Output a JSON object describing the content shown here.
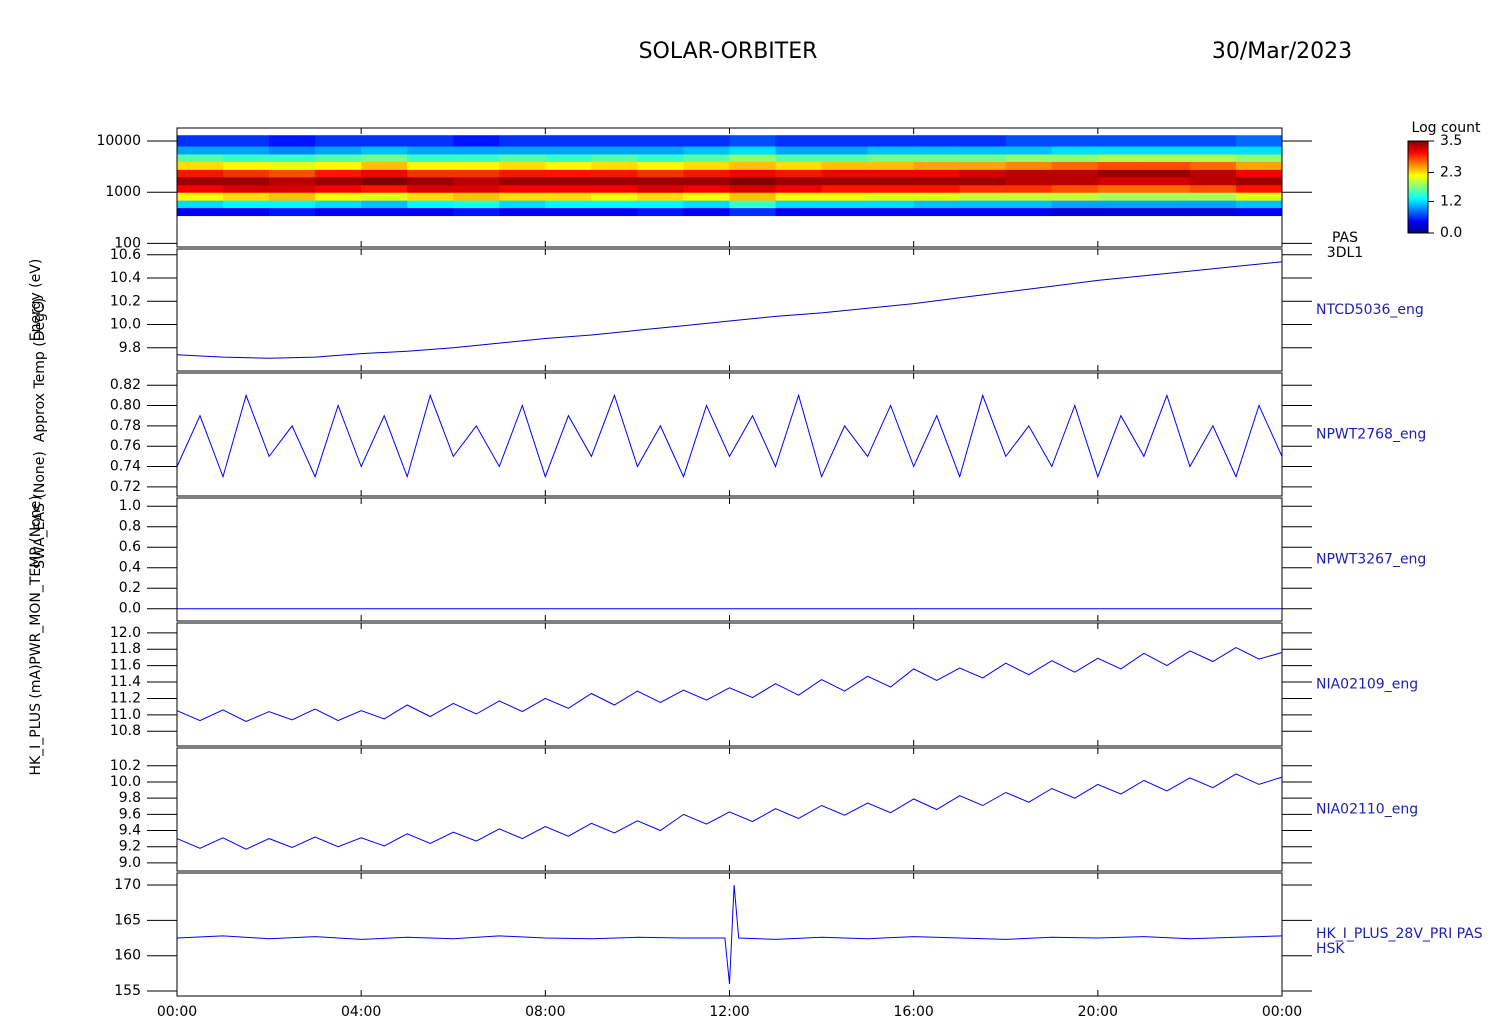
{
  "title": "SOLAR-ORBITER",
  "date": "30/Mar/2023",
  "chart_data": [
    {
      "type": "heatmap",
      "ylabel": "Energy (eV)",
      "label": [
        "PAS",
        "3DL1"
      ],
      "ylog": true,
      "ylim": [
        85,
        18000
      ],
      "yticks": [
        100,
        1000,
        10000
      ],
      "xlim": [
        0,
        24
      ],
      "xticks": [
        0,
        4,
        8,
        12,
        16,
        20,
        24
      ],
      "x": [
        0,
        1,
        2,
        3,
        4,
        5,
        6,
        7,
        8,
        9,
        10,
        11,
        12,
        13,
        14,
        15,
        16,
        17,
        18,
        19,
        20,
        21,
        22,
        23,
        24
      ],
      "ybins": [
        350,
        500,
        700,
        1000,
        1400,
        2000,
        2800,
        4000,
        5600,
        8000,
        13000
      ],
      "z": [
        [
          0.4,
          1.2,
          2.2,
          3.1,
          3.4,
          3.0,
          2.3,
          1.6,
          1.0,
          0.6
        ],
        [
          0.4,
          1.3,
          2.3,
          3.2,
          3.4,
          2.9,
          2.2,
          1.5,
          1.0,
          0.6
        ],
        [
          0.5,
          1.3,
          2.4,
          3.2,
          3.3,
          2.8,
          2.1,
          1.5,
          0.9,
          0.5
        ],
        [
          0.4,
          1.2,
          2.2,
          3.1,
          3.4,
          3.0,
          2.2,
          1.6,
          1.0,
          0.6
        ],
        [
          0.4,
          1.1,
          2.1,
          3.0,
          3.5,
          3.1,
          2.4,
          1.7,
          1.1,
          0.6
        ],
        [
          0.4,
          1.3,
          2.3,
          3.2,
          3.4,
          2.9,
          2.2,
          1.5,
          1.0,
          0.6
        ],
        [
          0.5,
          1.4,
          2.4,
          3.2,
          3.3,
          2.9,
          2.2,
          1.5,
          1.0,
          0.5
        ],
        [
          0.4,
          1.2,
          2.3,
          3.1,
          3.4,
          3.0,
          2.3,
          1.6,
          1.0,
          0.6
        ],
        [
          0.4,
          1.3,
          2.3,
          3.1,
          3.4,
          3.0,
          2.2,
          1.5,
          1.0,
          0.6
        ],
        [
          0.4,
          1.3,
          2.2,
          3.1,
          3.4,
          3.0,
          2.3,
          1.6,
          1.0,
          0.6
        ],
        [
          0.5,
          1.3,
          2.3,
          3.2,
          3.4,
          2.9,
          2.2,
          1.5,
          1.0,
          0.6
        ],
        [
          0.4,
          1.2,
          2.2,
          3.1,
          3.4,
          3.0,
          2.3,
          1.6,
          1.1,
          0.6
        ],
        [
          0.6,
          1.5,
          2.4,
          3.2,
          3.5,
          3.1,
          2.4,
          1.8,
          1.2,
          0.7
        ],
        [
          0.4,
          1.2,
          2.2,
          3.1,
          3.4,
          3.0,
          2.3,
          1.6,
          1.0,
          0.6
        ],
        [
          0.4,
          1.2,
          2.2,
          3.0,
          3.4,
          3.1,
          2.4,
          1.6,
          1.0,
          0.6
        ],
        [
          0.4,
          1.2,
          2.1,
          3.0,
          3.4,
          3.1,
          2.4,
          1.7,
          1.1,
          0.6
        ],
        [
          0.4,
          1.1,
          2.1,
          3.0,
          3.4,
          3.1,
          2.5,
          1.7,
          1.1,
          0.6
        ],
        [
          0.4,
          1.1,
          2.0,
          2.9,
          3.4,
          3.2,
          2.5,
          1.7,
          1.1,
          0.6
        ],
        [
          0.4,
          1.1,
          2.0,
          2.9,
          3.3,
          3.3,
          2.6,
          1.8,
          1.1,
          0.7
        ],
        [
          0.3,
          1.0,
          2.0,
          2.8,
          3.3,
          3.3,
          2.7,
          1.8,
          1.2,
          0.7
        ],
        [
          0.3,
          1.0,
          1.9,
          2.7,
          3.2,
          3.4,
          2.8,
          1.9,
          1.2,
          0.7
        ],
        [
          0.3,
          1.0,
          1.9,
          2.7,
          3.2,
          3.4,
          2.8,
          1.9,
          1.2,
          0.7
        ],
        [
          0.3,
          1.0,
          1.9,
          2.8,
          3.3,
          3.3,
          2.7,
          1.9,
          1.2,
          0.7
        ],
        [
          0.4,
          1.1,
          2.1,
          3.0,
          3.4,
          3.1,
          2.5,
          1.8,
          1.2,
          0.8
        ]
      ],
      "colorbar": {
        "title": "Log count",
        "clim": [
          0,
          3.5
        ],
        "ticks": [
          {
            "value": 0,
            "label": "0.0"
          },
          1.2,
          2.3,
          3.5
        ]
      }
    },
    {
      "type": "line",
      "ylabel": "Approx Temp (DegC)",
      "label": "NTCD5036_eng",
      "ylim": [
        9.6,
        10.65
      ],
      "yticks": [
        9.8,
        {
          "value": 10,
          "label": "10.0"
        },
        10.2,
        10.4,
        10.6
      ],
      "xlim": [
        0,
        24
      ],
      "xticks": [
        0,
        4,
        8,
        12,
        16,
        20,
        24
      ],
      "series": [
        {
          "color": "#0000c8",
          "x": [
            0,
            1,
            2,
            3,
            4,
            5,
            6,
            7,
            8,
            9,
            10,
            11,
            12,
            13,
            14,
            15,
            16,
            17,
            18,
            19,
            20,
            21,
            22,
            23,
            24
          ],
          "values": [
            9.74,
            9.72,
            9.71,
            9.72,
            9.75,
            9.77,
            9.8,
            9.84,
            9.88,
            9.91,
            9.95,
            9.99,
            10.03,
            10.07,
            10.1,
            10.14,
            10.18,
            10.23,
            10.28,
            10.33,
            10.38,
            10.42,
            10.46,
            10.5,
            10.54
          ]
        }
      ]
    },
    {
      "type": "line",
      "label": "NPWT2768_eng",
      "ylim": [
        0.711,
        0.832
      ],
      "yticks": [
        0.72,
        0.74,
        0.76,
        0.78,
        {
          "value": 0.8,
          "label": "0.80"
        },
        0.82
      ],
      "xlim": [
        0,
        24
      ],
      "xticks": [
        0,
        4,
        8,
        12,
        16,
        20,
        24
      ],
      "series": [
        {
          "color": "#0000ff",
          "x": [
            0,
            0.5,
            1,
            1.5,
            2,
            2.5,
            3,
            3.5,
            4,
            4.5,
            5,
            5.5,
            6,
            6.5,
            7,
            7.5,
            8,
            8.5,
            9,
            9.5,
            10,
            10.5,
            11,
            11.5,
            12,
            12.5,
            13,
            13.5,
            14,
            14.5,
            15,
            15.5,
            16,
            16.5,
            17,
            17.5,
            18,
            18.5,
            19,
            19.5,
            20,
            20.5,
            21,
            21.5,
            22,
            22.5,
            23,
            23.5,
            24
          ],
          "values": [
            0.74,
            0.79,
            0.73,
            0.81,
            0.75,
            0.78,
            0.73,
            0.8,
            0.74,
            0.79,
            0.73,
            0.81,
            0.75,
            0.78,
            0.74,
            0.8,
            0.73,
            0.79,
            0.75,
            0.81,
            0.74,
            0.78,
            0.73,
            0.8,
            0.75,
            0.79,
            0.74,
            0.81,
            0.73,
            0.78,
            0.75,
            0.8,
            0.74,
            0.79,
            0.73,
            0.81,
            0.75,
            0.78,
            0.74,
            0.8,
            0.73,
            0.79,
            0.75,
            0.81,
            0.74,
            0.78,
            0.73,
            0.8,
            0.75
          ]
        }
      ]
    },
    {
      "type": "line",
      "ylabel": "SWA_EAS (None)",
      "label": "NPWT3267_eng",
      "ylim": [
        -0.12,
        1.08
      ],
      "yticks": [
        {
          "value": 0,
          "label": "0.0"
        },
        0.2,
        0.4,
        0.6,
        0.8,
        {
          "value": 1,
          "label": "1.0"
        }
      ],
      "xlim": [
        0,
        24
      ],
      "xticks": [
        0,
        4,
        8,
        12,
        16,
        20,
        24
      ],
      "series": [
        {
          "color": "#0000ff",
          "x": [
            0,
            24
          ],
          "values": [
            0,
            0
          ]
        }
      ]
    },
    {
      "type": "line",
      "ylabel": "PWR_MON_TEMP (None)",
      "label": "NIA02109_eng",
      "ylim": [
        10.62,
        12.12
      ],
      "yticks": [
        10.8,
        {
          "value": 11,
          "label": "11.0"
        },
        11.2,
        11.4,
        11.6,
        11.8,
        {
          "value": 12,
          "label": "12.0"
        }
      ],
      "xlim": [
        0,
        24
      ],
      "xticks": [
        0,
        4,
        8,
        12,
        16,
        20,
        24
      ],
      "series": [
        {
          "color": "#0000ff",
          "x": [
            0,
            0.5,
            1,
            1.5,
            2,
            2.5,
            3,
            3.5,
            4,
            4.5,
            5,
            5.5,
            6,
            6.5,
            7,
            7.5,
            8,
            8.5,
            9,
            9.5,
            10,
            10.5,
            11,
            11.5,
            12,
            12.5,
            13,
            13.5,
            14,
            14.5,
            15,
            15.5,
            16,
            16.5,
            17,
            17.5,
            18,
            18.5,
            19,
            19.5,
            20,
            20.5,
            21,
            21.5,
            22,
            22.5,
            23,
            23.5,
            24
          ],
          "values": [
            11.05,
            10.93,
            11.06,
            10.92,
            11.04,
            10.94,
            11.07,
            10.93,
            11.05,
            10.95,
            11.12,
            10.98,
            11.14,
            11.01,
            11.17,
            11.04,
            11.2,
            11.08,
            11.26,
            11.12,
            11.29,
            11.15,
            11.3,
            11.18,
            11.33,
            11.21,
            11.38,
            11.24,
            11.43,
            11.29,
            11.47,
            11.34,
            11.56,
            11.42,
            11.57,
            11.45,
            11.63,
            11.49,
            11.66,
            11.52,
            11.69,
            11.56,
            11.75,
            11.6,
            11.78,
            11.65,
            11.82,
            11.68,
            11.76
          ]
        }
      ]
    },
    {
      "type": "line",
      "label": "NIA02110_eng",
      "ylim": [
        8.9,
        10.42
      ],
      "yticks": [
        {
          "value": 9,
          "label": "9.0"
        },
        9.2,
        9.4,
        9.6,
        9.8,
        {
          "value": 10,
          "label": "10.0"
        },
        10.2
      ],
      "xlim": [
        0,
        24
      ],
      "xticks": [
        0,
        4,
        8,
        12,
        16,
        20,
        24
      ],
      "series": [
        {
          "color": "#0000ff",
          "x": [
            0,
            0.5,
            1,
            1.5,
            2,
            2.5,
            3,
            3.5,
            4,
            4.5,
            5,
            5.5,
            6,
            6.5,
            7,
            7.5,
            8,
            8.5,
            9,
            9.5,
            10,
            10.5,
            11,
            11.5,
            12,
            12.5,
            13,
            13.5,
            14,
            14.5,
            15,
            15.5,
            16,
            16.5,
            17,
            17.5,
            18,
            18.5,
            19,
            19.5,
            20,
            20.5,
            21,
            21.5,
            22,
            22.5,
            23,
            23.5,
            24
          ],
          "values": [
            9.3,
            9.18,
            9.31,
            9.17,
            9.3,
            9.19,
            9.32,
            9.2,
            9.31,
            9.21,
            9.36,
            9.24,
            9.38,
            9.27,
            9.42,
            9.3,
            9.45,
            9.33,
            9.49,
            9.37,
            9.52,
            9.4,
            9.6,
            9.48,
            9.63,
            9.51,
            9.67,
            9.55,
            9.71,
            9.59,
            9.74,
            9.62,
            9.79,
            9.66,
            9.83,
            9.71,
            9.87,
            9.75,
            9.92,
            9.8,
            9.97,
            9.85,
            10.02,
            9.89,
            10.05,
            9.93,
            10.1,
            9.97,
            10.06
          ]
        }
      ]
    },
    {
      "type": "line",
      "ylabel": "HK_I_PLUS (mA)",
      "label": [
        "HK_I_PLUS_28V_PRI PAS",
        "HSK"
      ],
      "ylim": [
        154.3,
        171.7
      ],
      "yticks": [
        155,
        160,
        165,
        170
      ],
      "xlim": [
        0,
        24
      ],
      "xticks": [
        {
          "value": 0,
          "label": "00:00"
        },
        {
          "value": 4,
          "label": "04:00"
        },
        {
          "value": 8,
          "label": "08:00"
        },
        {
          "value": 12,
          "label": "12:00"
        },
        {
          "value": 16,
          "label": "16:00"
        },
        {
          "value": 20,
          "label": "20:00"
        },
        {
          "value": 24,
          "label": "00:00"
        }
      ],
      "series": [
        {
          "color": "#0000ff",
          "x": [
            0,
            1,
            2,
            3,
            4,
            5,
            6,
            7,
            8,
            9,
            10,
            11,
            11.9,
            12,
            12.1,
            12.2,
            13,
            14,
            15,
            16,
            17,
            18,
            19,
            20,
            21,
            22,
            23,
            24
          ],
          "values": [
            162.5,
            162.8,
            162.4,
            162.7,
            162.3,
            162.6,
            162.4,
            162.8,
            162.5,
            162.4,
            162.6,
            162.5,
            162.5,
            156,
            170,
            162.5,
            162.3,
            162.6,
            162.4,
            162.7,
            162.5,
            162.3,
            162.6,
            162.5,
            162.7,
            162.4,
            162.6,
            162.8
          ]
        }
      ]
    }
  ]
}
